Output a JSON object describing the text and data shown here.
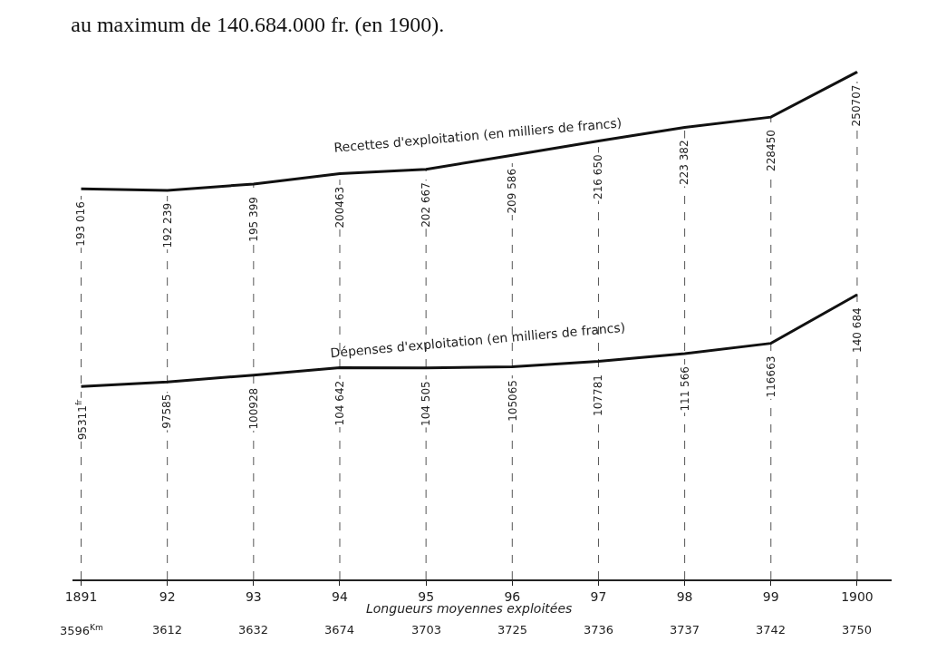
{
  "chart_data": {
    "type": "line",
    "title": "au maximum de 140.684.000 fr. (en 1900).",
    "categories": [
      "1891",
      "92",
      "93",
      "94",
      "95",
      "96",
      "97",
      "98",
      "99",
      "1900"
    ],
    "series": [
      {
        "name": "Recettes d'exploitation (en milliers de francs)",
        "color": "#111111",
        "values": [
          193016,
          192239,
          195399,
          200463,
          202667,
          209586,
          216650,
          223382,
          228450,
          250707
        ],
        "value_labels": [
          "193 016",
          "192 239",
          "195 399",
          "200463",
          "202 667",
          "209 586",
          "216 650",
          "223 382",
          "228450",
          "250707"
        ]
      },
      {
        "name": "Dépenses d'exploitation (en milliers de francs)",
        "color": "#111111",
        "values": [
          95311,
          97585,
          100928,
          104642,
          104505,
          105065,
          107781,
          111566,
          116663,
          140684
        ],
        "value_labels": [
          "95311$^{fr}$",
          "97585",
          "100928",
          "104 642",
          "104 505",
          "105065",
          "107781",
          "111 566",
          "116663",
          "140 684"
        ]
      }
    ],
    "tick_labels": "x",
    "grid": "x",
    "legend": false,
    "marker": "none",
    "line_style": "solid",
    "annotations": [
      "Longueurs moyennes exploitées",
      "3596$^{Km}$",
      "3612",
      "3632",
      "3674",
      "3703",
      "3725",
      "3736",
      "3737",
      "3742",
      "3750"
    ]
  }
}
